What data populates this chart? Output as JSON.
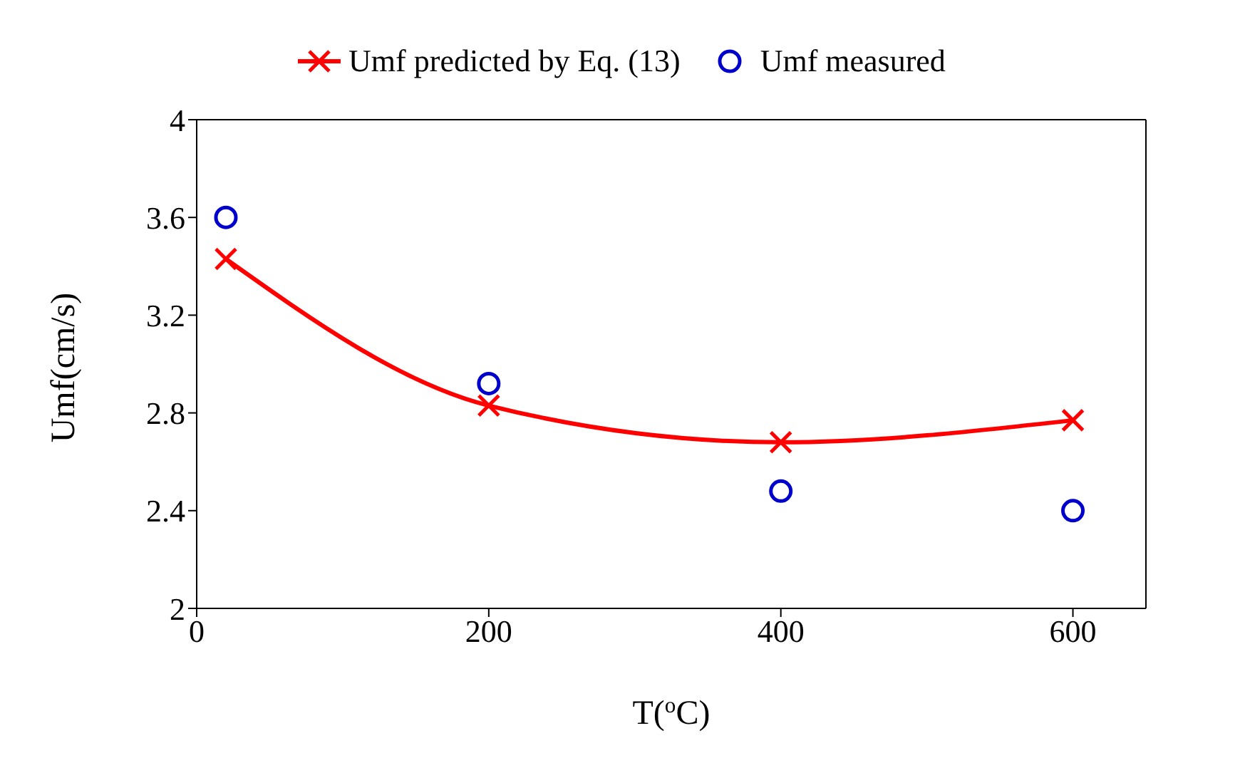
{
  "chart_data": {
    "type": "line",
    "xlabel": "T($^{o}$C)",
    "ylabel": "Umf(cm/s)",
    "xlim": [
      0,
      650
    ],
    "xticks": [
      0,
      200,
      400,
      600
    ],
    "ylim": [
      2,
      4
    ],
    "yticks": [
      2,
      2.4,
      2.8,
      3.2,
      3.6,
      4
    ],
    "grid": false,
    "legend": "top",
    "series": [
      {
        "name": "Umf predicted by Eq. (13)",
        "color": "#ff0000",
        "marker": "cross",
        "x": [
          20,
          200,
          400,
          600
        ],
        "values": [
          3.43,
          2.83,
          2.68,
          2.77
        ]
      },
      {
        "name": "Umf measured",
        "type": "scatter",
        "color": "#0000cc",
        "marker": "circle",
        "x": [
          20,
          200,
          400,
          600
        ],
        "values": [
          3.6,
          2.92,
          2.48,
          2.4
        ]
      }
    ]
  }
}
